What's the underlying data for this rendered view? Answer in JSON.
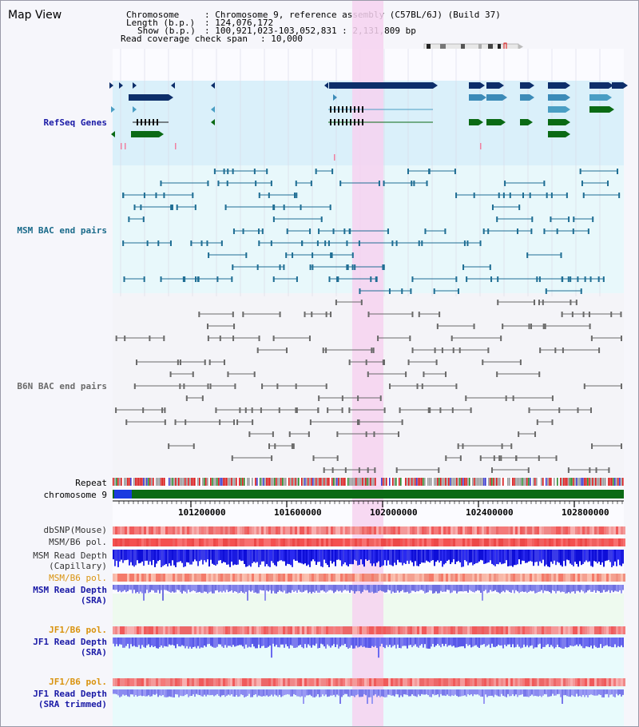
{
  "title": "Map View",
  "header": {
    "chromosome_key": "Chromosome",
    "chromosome_value": ": Chromosome 9, reference assembly (C57BL/6J) (Build 37)",
    "length_key": "Length (b.p.)",
    "length_value": ": 124,076,172",
    "show_key": "Show (b.p.)",
    "show_value": ": 100,921,023-103,052,831 : 2,131,809 bp",
    "coverage_key": "Read coverage check span",
    "coverage_value": ": 10,000"
  },
  "tracks": {
    "refseq": "RefSeq Genes",
    "msm_bac": "MSM BAC end pairs",
    "b6n_bac": "B6N BAC end pairs",
    "repeat": "Repeat",
    "chromosome": "chromosome 9",
    "dbsnp": "dbSNP(Mouse)",
    "msm_b6_pol": "MSM/B6 pol.",
    "msm_depth_cap": "MSM Read Depth\n(Capillary)",
    "msm_b6_pol2": "MSM/B6 pol.",
    "msm_depth_sra": "MSM Read Depth\n(SRA)",
    "jf1_b6_pol": "JF1/B6 pol.",
    "jf1_depth_sra": "JF1 Read Depth\n(SRA)",
    "jf1_b6_pol2": "JF1/B6 pol.",
    "jf1_depth_trim": "JF1 Read Depth\n(SRA trimmed)"
  },
  "axis": {
    "ticks": [
      "101200000",
      "101600000",
      "102000000",
      "102400000",
      "102800000"
    ]
  },
  "colors": {
    "refseq_bg": "#daf0fa",
    "msm_bg": "#e8f8fb",
    "b6n_bg": "#f4f4f8",
    "highlight": "#f6d2f0",
    "refseq_label": "#1a1aa6",
    "msm_label": "#1a6a8a",
    "b6n_label": "#6a6a6a",
    "orange_label": "#d9930f",
    "blue_label": "#1a1aa6"
  }
}
